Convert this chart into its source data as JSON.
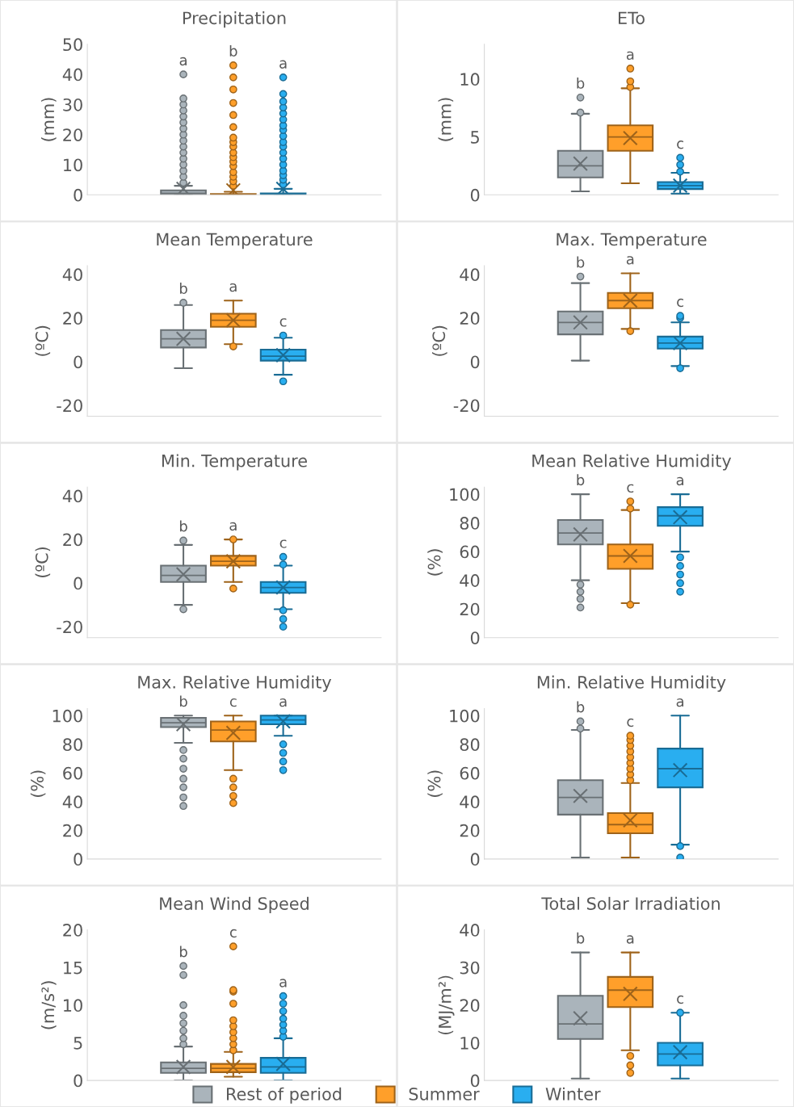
{
  "chart_data": [
    {
      "type": "box",
      "title": "Precipitation",
      "ylabel": "(mm)",
      "categories": [
        null
      ],
      "ylim": [
        0,
        50
      ],
      "yticks": [
        0,
        10,
        20,
        30,
        40,
        50
      ],
      "grid": false,
      "legend": "bottom",
      "annotations": [
        "a",
        "b",
        "a"
      ],
      "series": [
        {
          "name": "Rest of period",
          "color": "#aab4bb",
          "boxes": [
            {
              "low": 0,
              "q1": 0,
              "median": 0.5,
              "q3": 1.5,
              "high": 3,
              "mean": 2,
              "outliers": [
                4,
                6,
                8,
                10,
                12,
                14,
                16,
                18,
                20,
                22,
                24,
                26,
                28,
                30,
                32,
                40
              ]
            }
          ]
        },
        {
          "name": "Summer",
          "color": "#ff9f2a",
          "boxes": [
            {
              "low": 0,
              "q1": 0,
              "median": 0.1,
              "q3": 0.3,
              "high": 1,
              "mean": 1.5,
              "outliers": [
                3,
                4.5,
                6,
                7.5,
                9.5,
                11,
                12.5,
                14,
                16,
                17.5,
                19,
                22.5,
                26.5,
                30.5,
                35,
                39,
                43
              ]
            }
          ]
        },
        {
          "name": "Winter",
          "color": "#29aef0",
          "boxes": [
            {
              "low": 0,
              "q1": 0,
              "median": 0.2,
              "q3": 0.5,
              "high": 2,
              "mean": 2,
              "outliers": [
                3.5,
                5,
                6.5,
                8,
                10,
                12,
                14,
                16,
                17.5,
                19.5,
                21.5,
                23,
                25,
                27,
                29,
                31,
                33.5,
                39
              ]
            }
          ]
        }
      ]
    },
    {
      "type": "box",
      "title": "ETo",
      "ylabel": "(mm)",
      "categories": [
        null
      ],
      "ylim": [
        0,
        13
      ],
      "yticks": [
        0,
        5,
        10
      ],
      "grid": false,
      "annotations": [
        "b",
        "a",
        "c"
      ],
      "series": [
        {
          "color": "#aab4bb",
          "boxes": [
            {
              "low": 0.3,
              "q1": 1.5,
              "median": 2.5,
              "q3": 3.8,
              "high": 7,
              "mean": 2.7,
              "outliers": [
                7.1,
                8.4
              ]
            }
          ]
        },
        {
          "color": "#ff9f2a",
          "boxes": [
            {
              "low": 1,
              "q1": 3.8,
              "median": 5,
              "q3": 6,
              "high": 9.2,
              "mean": 4.9,
              "outliers": [
                9.3,
                9.8,
                10.9
              ]
            }
          ]
        },
        {
          "color": "#29aef0",
          "boxes": [
            {
              "low": 0.1,
              "q1": 0.5,
              "median": 0.8,
              "q3": 1.1,
              "high": 1.9,
              "mean": 0.8,
              "outliers": [
                2,
                2.6,
                3.2
              ]
            }
          ]
        }
      ]
    },
    {
      "type": "box",
      "title": "Mean Temperature",
      "ylabel": "(ºC)",
      "categories": [
        null
      ],
      "ylim": [
        -25,
        44
      ],
      "yticks": [
        -20,
        0,
        20,
        40
      ],
      "grid": false,
      "annotations": [
        "b",
        "a",
        "c"
      ],
      "series": [
        {
          "color": "#aab4bb",
          "boxes": [
            {
              "low": -3,
              "q1": 6.5,
              "median": 10.5,
              "q3": 14.5,
              "high": 26,
              "mean": 10.5,
              "outliers": [
                27
              ]
            }
          ]
        },
        {
          "color": "#ff9f2a",
          "boxes": [
            {
              "low": 8,
              "q1": 16,
              "median": 19,
              "q3": 22,
              "high": 28,
              "mean": 19,
              "outliers": [
                7
              ]
            }
          ]
        },
        {
          "color": "#29aef0",
          "boxes": [
            {
              "low": -6,
              "q1": 0.5,
              "median": 2.5,
              "q3": 5.5,
              "high": 11,
              "mean": 3,
              "outliers": [
                12,
                -9
              ]
            }
          ]
        }
      ]
    },
    {
      "type": "box",
      "title": "Max. Temperature",
      "ylabel": "(ºC)",
      "categories": [
        null
      ],
      "ylim": [
        -25,
        44
      ],
      "yticks": [
        -20,
        0,
        20,
        40
      ],
      "grid": false,
      "annotations": [
        "b",
        "a",
        "c"
      ],
      "series": [
        {
          "color": "#aab4bb",
          "boxes": [
            {
              "low": 0.5,
              "q1": 12.5,
              "median": 18,
              "q3": 23,
              "high": 36,
              "mean": 18,
              "outliers": [
                39
              ]
            }
          ]
        },
        {
          "color": "#ff9f2a",
          "boxes": [
            {
              "low": 15,
              "q1": 24.5,
              "median": 28,
              "q3": 31.5,
              "high": 40.5,
              "mean": 28,
              "outliers": [
                14
              ]
            }
          ]
        },
        {
          "color": "#29aef0",
          "boxes": [
            {
              "low": -2,
              "q1": 6,
              "median": 8.5,
              "q3": 11.5,
              "high": 18,
              "mean": 8.5,
              "outliers": [
                20,
                21,
                -3
              ]
            }
          ]
        }
      ]
    },
    {
      "type": "box",
      "title": "Min. Temperature",
      "ylabel": "(ºC)",
      "categories": [
        null
      ],
      "ylim": [
        -25,
        44
      ],
      "yticks": [
        -20,
        0,
        20,
        40
      ],
      "grid": false,
      "annotations": [
        "b",
        "a",
        "c"
      ],
      "series": [
        {
          "color": "#aab4bb",
          "boxes": [
            {
              "low": -10,
              "q1": 0.5,
              "median": 3.5,
              "q3": 8,
              "high": 17.5,
              "mean": 4,
              "outliers": [
                19.5,
                -12
              ]
            }
          ]
        },
        {
          "color": "#ff9f2a",
          "boxes": [
            {
              "low": 0.5,
              "q1": 8,
              "median": 10,
              "q3": 12.5,
              "high": 20,
              "mean": 10,
              "outliers": [
                20,
                -2.5
              ]
            }
          ]
        },
        {
          "color": "#29aef0",
          "boxes": [
            {
              "low": -12,
              "q1": -4.5,
              "median": -2,
              "q3": 0.5,
              "high": 8,
              "mean": -2,
              "outliers": [
                8.5,
                12,
                -12.5,
                -16.5,
                -20
              ]
            }
          ]
        }
      ]
    },
    {
      "type": "box",
      "title": "Mean Relative Humidity",
      "ylabel": "(%)",
      "categories": [
        null
      ],
      "ylim": [
        0,
        105
      ],
      "yticks": [
        0,
        20,
        40,
        60,
        80,
        100
      ],
      "grid": false,
      "annotations": [
        "b",
        "c",
        "a"
      ],
      "series": [
        {
          "color": "#aab4bb",
          "boxes": [
            {
              "low": 40,
              "q1": 65,
              "median": 73,
              "q3": 82,
              "high": 100,
              "mean": 72,
              "outliers": [
                37,
                32,
                27,
                21
              ]
            }
          ]
        },
        {
          "color": "#ff9f2a",
          "boxes": [
            {
              "low": 24,
              "q1": 48,
              "median": 57,
              "q3": 65,
              "high": 89,
              "mean": 57,
              "outliers": [
                95,
                90,
                23
              ]
            }
          ]
        },
        {
          "color": "#29aef0",
          "boxes": [
            {
              "low": 60,
              "q1": 78,
              "median": 85,
              "q3": 91,
              "high": 100,
              "mean": 84,
              "outliers": [
                56,
                50,
                44,
                38,
                32
              ]
            }
          ]
        }
      ]
    },
    {
      "type": "box",
      "title": "Max. Relative Humidity",
      "ylabel": "(%)",
      "categories": [
        null
      ],
      "ylim": [
        0,
        105
      ],
      "yticks": [
        0,
        20,
        40,
        60,
        80,
        100
      ],
      "grid": false,
      "annotations": [
        "b",
        "c",
        "a"
      ],
      "series": [
        {
          "color": "#aab4bb",
          "boxes": [
            {
              "low": 81,
              "q1": 92,
              "median": 95,
              "q3": 98.5,
              "high": 100,
              "mean": 94,
              "outliers": [
                76,
                70,
                63,
                56,
                50,
                43,
                37
              ]
            }
          ]
        },
        {
          "color": "#ff9f2a",
          "boxes": [
            {
              "low": 62,
              "q1": 82,
              "median": 90,
              "q3": 96,
              "high": 100,
              "mean": 88,
              "outliers": [
                56,
                50,
                44,
                39
              ]
            }
          ]
        },
        {
          "color": "#29aef0",
          "boxes": [
            {
              "low": 86,
              "q1": 94,
              "median": 97,
              "q3": 100,
              "high": 100,
              "mean": 96,
              "outliers": [
                80,
                74,
                68,
                62
              ]
            }
          ]
        }
      ]
    },
    {
      "type": "box",
      "title": "Min. Relative Humidity",
      "ylabel": "(%)",
      "categories": [
        null
      ],
      "ylim": [
        0,
        105
      ],
      "yticks": [
        0,
        20,
        40,
        60,
        80,
        100
      ],
      "grid": false,
      "annotations": [
        "b",
        "c",
        "a"
      ],
      "series": [
        {
          "color": "#aab4bb",
          "boxes": [
            {
              "low": 1,
              "q1": 31,
              "median": 43,
              "q3": 55,
              "high": 90,
              "mean": 44,
              "outliers": [
                91,
                96
              ]
            }
          ]
        },
        {
          "color": "#ff9f2a",
          "boxes": [
            {
              "low": 1,
              "q1": 18,
              "median": 24,
              "q3": 32,
              "high": 53,
              "mean": 27,
              "outliers": [
                55,
                59,
                63,
                67,
                71,
                75,
                79,
                83,
                86
              ]
            }
          ]
        },
        {
          "color": "#29aef0",
          "boxes": [
            {
              "low": 10,
              "q1": 50,
              "median": 63,
              "q3": 77,
              "high": 100,
              "mean": 62,
              "outliers": [
                9,
                1
              ]
            }
          ]
        }
      ]
    },
    {
      "type": "box",
      "title": "Mean Wind Speed",
      "ylabel": "(m/s²)",
      "categories": [
        null
      ],
      "ylim": [
        0,
        20
      ],
      "yticks": [
        0,
        5,
        10,
        15,
        20
      ],
      "grid": false,
      "annotations": [
        "b",
        "c",
        "a"
      ],
      "series": [
        {
          "color": "#aab4bb",
          "boxes": [
            {
              "low": 0,
              "q1": 1,
              "median": 1.6,
              "q3": 2.4,
              "high": 4.5,
              "mean": 1.8,
              "outliers": [
                4.8,
                5.6,
                6.6,
                7.6,
                8.6,
                10,
                14,
                15.2
              ]
            }
          ]
        },
        {
          "color": "#ff9f2a",
          "boxes": [
            {
              "low": 0.5,
              "q1": 1.1,
              "median": 1.6,
              "q3": 2.2,
              "high": 3.8,
              "mean": 1.8,
              "outliers": [
                4,
                4.8,
                5.6,
                6.4,
                7.2,
                8,
                10.2,
                11.8,
                12,
                17.8
              ]
            }
          ]
        },
        {
          "color": "#29aef0",
          "boxes": [
            {
              "low": 0,
              "q1": 1,
              "median": 1.8,
              "q3": 3,
              "high": 5.6,
              "mean": 2.2,
              "outliers": [
                5.8,
                6.6,
                7.4,
                8.2,
                9.2,
                10.2,
                11.2
              ]
            }
          ]
        }
      ]
    },
    {
      "type": "box",
      "title": "Total Solar Irradiation",
      "ylabel": "(MJ/m²)",
      "categories": [
        null
      ],
      "ylim": [
        0,
        40
      ],
      "yticks": [
        0,
        10,
        20,
        30,
        40
      ],
      "grid": false,
      "annotations": [
        "b",
        "a",
        "c"
      ],
      "series": [
        {
          "color": "#aab4bb",
          "boxes": [
            {
              "low": 0.5,
              "q1": 11,
              "median": 15,
              "q3": 22.5,
              "high": 34,
              "mean": 16.5
            }
          ]
        },
        {
          "color": "#ff9f2a",
          "boxes": [
            {
              "low": 8,
              "q1": 19.5,
              "median": 24,
              "q3": 27.5,
              "high": 34,
              "mean": 23,
              "outliers": [
                6.5,
                4,
                2
              ]
            }
          ]
        },
        {
          "color": "#29aef0",
          "boxes": [
            {
              "low": 0.5,
              "q1": 4,
              "median": 7,
              "q3": 10,
              "high": 18,
              "mean": 7.5,
              "outliers": [
                18
              ]
            }
          ]
        }
      ]
    }
  ]
}
